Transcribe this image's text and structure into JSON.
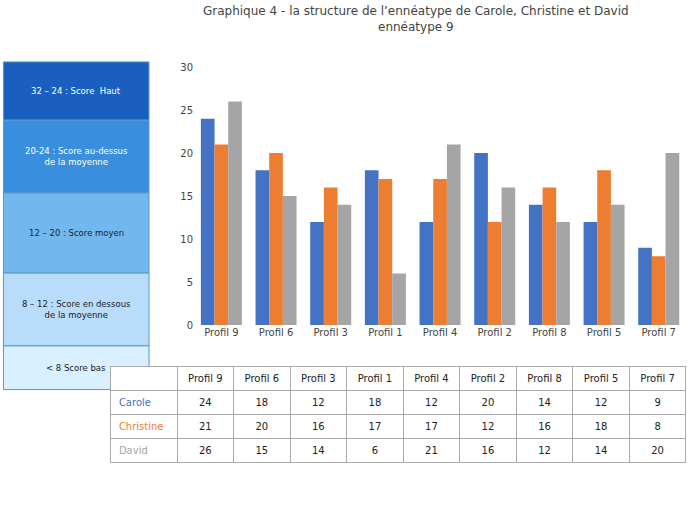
{
  "chart_data": {
    "type": "bar",
    "title": "Graphique 4 - la structure de l’ennéatype de Carole, Christine et David",
    "subtitle": "ennéatype 9",
    "categories": [
      "Profil 9",
      "Profil 6",
      "Profil 3",
      "Profil 1",
      "Profil 4",
      "Profil 2",
      "Profil 8",
      "Profil 5",
      "Profil 7"
    ],
    "series": [
      {
        "name": "Carole",
        "color": "#4472C4",
        "values": [
          24,
          18,
          12,
          18,
          12,
          20,
          14,
          12,
          9
        ]
      },
      {
        "name": "Christine",
        "color": "#ED7D31",
        "values": [
          21,
          20,
          16,
          17,
          17,
          12,
          16,
          18,
          8
        ]
      },
      {
        "name": "David",
        "color": "#A5A5A5",
        "values": [
          26,
          15,
          14,
          6,
          21,
          16,
          12,
          14,
          20
        ]
      }
    ],
    "ylim": [
      0,
      30
    ],
    "yticks": [
      0,
      5,
      10,
      15,
      20,
      25,
      30
    ],
    "grid": true,
    "annotations": [
      {
        "text": "32 – 24 : Score  Haut",
        "color": "#1A5FBF"
      },
      {
        "text": "20-24 : Score au-dessus\nde la moyenne",
        "color": "#3A8EDE"
      },
      {
        "text": "12 – 20 : Score moyen",
        "color": "#72B8F0"
      },
      {
        "text": "8 – 12 : Score en dessous\nde la moyenne",
        "color": "#B8DCFA"
      },
      {
        "text": "< 8 Score bas",
        "color": "#D8F0FF"
      }
    ]
  }
}
